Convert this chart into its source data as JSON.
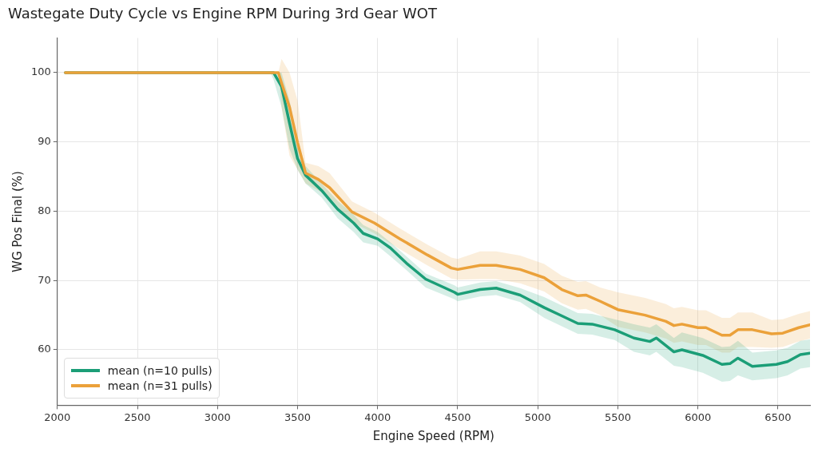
{
  "chart_data": {
    "type": "line",
    "title": "Wastegate Duty Cycle vs Engine RPM During 3rd Gear WOT",
    "xlabel": "Engine Speed (RPM)",
    "ylabel": "WG Pos Final (%)",
    "xlim": [
      2000,
      6700
    ],
    "xticks": [
      2000,
      2500,
      3000,
      3500,
      4000,
      4500,
      5000,
      5500,
      6000,
      6500
    ],
    "ylim": [
      52,
      105
    ],
    "yticks": [
      60,
      70,
      80,
      90,
      100
    ],
    "grid": true,
    "legend": "bottom left",
    "marker": "none",
    "line_style": "solid",
    "series": [
      {
        "name": "mean (n=10 pulls)",
        "color": "#1b9e77",
        "x": [
          2050,
          3330,
          3350,
          3400,
          3450,
          3500,
          3550,
          3650,
          3750,
          3850,
          3910,
          4000,
          4080,
          4180,
          4300,
          4480,
          4500,
          4640,
          4740,
          4890,
          5040,
          5150,
          5250,
          5340,
          5480,
          5600,
          5700,
          5740,
          5850,
          5900,
          6030,
          6150,
          6200,
          6250,
          6340,
          6490,
          6560,
          6640,
          6700
        ],
        "values": [
          100,
          100,
          100,
          98.0,
          92.7,
          87.6,
          85.2,
          83.0,
          80.3,
          78.3,
          76.8,
          76.0,
          74.7,
          72.5,
          70.2,
          68.3,
          68.0,
          68.7,
          68.9,
          67.9,
          66.1,
          64.9,
          63.8,
          63.7,
          62.9,
          61.7,
          61.2,
          61.7,
          59.7,
          60.0,
          59.2,
          57.9,
          58.0,
          58.8,
          57.6,
          57.9,
          58.3,
          59.3,
          59.5
        ],
        "lower": [
          100,
          100,
          99,
          95,
          89,
          86,
          84,
          82,
          79,
          77,
          75.5,
          75,
          73.5,
          71.5,
          69,
          67.3,
          67,
          67.7,
          67.9,
          66.9,
          64.6,
          63.4,
          62.3,
          62.2,
          61.4,
          59.7,
          59.2,
          59.7,
          57.7,
          57.5,
          56.7,
          55.4,
          55.5,
          56.3,
          55.6,
          55.9,
          56.3,
          57.3,
          57.5
        ],
        "upper": [
          100,
          100,
          100,
          100,
          96,
          90,
          86.5,
          84,
          81.5,
          79.5,
          78,
          77,
          75.5,
          73.5,
          71,
          69.3,
          69,
          69.7,
          69.9,
          68.9,
          67.6,
          66.4,
          65.3,
          65.2,
          64.4,
          63.7,
          63.2,
          63.7,
          61.7,
          62.5,
          61.7,
          60.4,
          60.5,
          61.3,
          59.6,
          59.9,
          60.3,
          61.3,
          61.5
        ]
      },
      {
        "name": "mean (n=31 pulls)",
        "color": "#eba13a",
        "x": [
          2050,
          3380,
          3400,
          3450,
          3500,
          3550,
          3630,
          3700,
          3840,
          3980,
          4140,
          4310,
          4460,
          4500,
          4640,
          4740,
          4890,
          5040,
          5150,
          5250,
          5300,
          5390,
          5500,
          5670,
          5800,
          5850,
          5900,
          6000,
          6050,
          6150,
          6200,
          6250,
          6340,
          6460,
          6530,
          6630,
          6700
        ],
        "values": [
          100,
          100,
          98.5,
          95.0,
          89.9,
          85.5,
          84.6,
          83.4,
          79.9,
          78.3,
          76.0,
          73.7,
          71.8,
          71.6,
          72.2,
          72.2,
          71.6,
          70.4,
          68.7,
          67.8,
          67.9,
          67.0,
          65.8,
          65.0,
          64.1,
          63.5,
          63.7,
          63.2,
          63.2,
          62.1,
          62.1,
          62.9,
          62.9,
          62.3,
          62.4,
          63.2,
          63.6
        ],
        "lower": [
          100,
          100,
          95,
          88,
          86,
          84,
          83,
          82,
          78.4,
          76.8,
          74.5,
          72.2,
          70.3,
          70.1,
          70.2,
          70.2,
          69.6,
          68.4,
          66.7,
          65.8,
          65.9,
          65,
          63.3,
          62.5,
          61.6,
          61,
          61.2,
          60.7,
          60.7,
          59.6,
          59.6,
          60.4,
          60.4,
          60.3,
          60.4,
          61.2,
          61.6
        ],
        "upper": [
          100,
          100,
          102,
          100,
          96,
          87,
          86.5,
          85.5,
          81.4,
          79.8,
          77.5,
          75.2,
          73.3,
          73.1,
          74.2,
          74.2,
          73.6,
          72.4,
          70.7,
          69.8,
          69.9,
          69,
          68.3,
          67.5,
          66.6,
          66,
          66.2,
          65.7,
          65.7,
          64.6,
          64.6,
          65.4,
          65.4,
          64.3,
          64.4,
          65.2,
          65.6
        ]
      }
    ]
  }
}
